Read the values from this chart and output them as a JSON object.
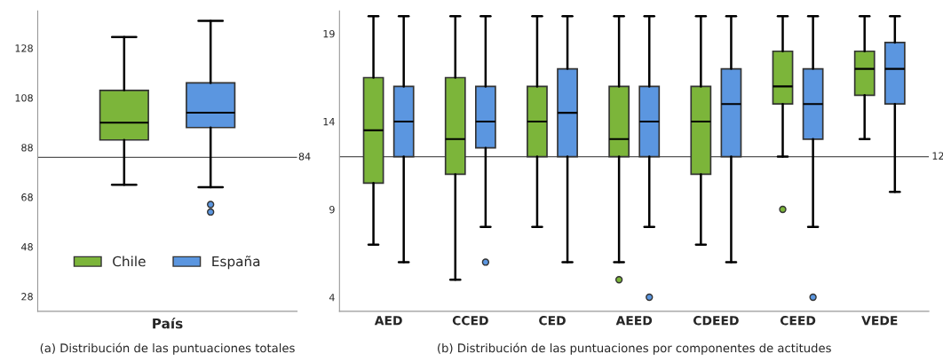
{
  "chart_data": [
    {
      "type": "box",
      "categories": [
        null
      ],
      "xlabel": "País",
      "ylim": [
        22,
        143
      ],
      "yticks": [
        28,
        48,
        68,
        88,
        108,
        128
      ],
      "legend": "bottom",
      "series": [
        {
          "name": "Chile",
          "color": "#7cb53a",
          "boxes": [
            {
              "low": 73,
              "q1": 91,
              "median": 98,
              "q3": 111,
              "high": 132.5
            }
          ]
        },
        {
          "name": "España",
          "color": "#5b96e0",
          "boxes": [
            {
              "low": 72,
              "q1": 96,
              "median": 102,
              "q3": 114,
              "high": 139,
              "outliers": [
                65,
                62
              ]
            }
          ]
        }
      ],
      "ref_lines": [
        {
          "axis": "y",
          "value": 84,
          "label": "84"
        }
      ],
      "annotations": [
        "(a) Distribución de las puntuaciones totales"
      ]
    },
    {
      "type": "box",
      "categories": [
        "AED",
        "CCED",
        "CED",
        "AEED",
        "CDEED",
        "CEED",
        "VEDE"
      ],
      "ylim": [
        3.2,
        20.3
      ],
      "yticks": [
        4,
        9,
        14,
        19
      ],
      "series": [
        {
          "color": "#7cb53a",
          "boxes": [
            {
              "low": 7,
              "q1": 10.5,
              "median": 13.5,
              "q3": 16.5,
              "high": 20
            },
            {
              "low": 5,
              "q1": 11,
              "median": 13,
              "q3": 16.5,
              "high": 20
            },
            {
              "low": 8,
              "q1": 12,
              "median": 14,
              "q3": 16,
              "high": 20
            },
            {
              "low": 6,
              "q1": 12,
              "median": 13,
              "q3": 16,
              "high": 20,
              "outliers": [
                5
              ]
            },
            {
              "low": 7,
              "q1": 11,
              "median": 14,
              "q3": 16,
              "high": 20
            },
            {
              "low": 12,
              "q1": 15,
              "median": 16,
              "q3": 18,
              "high": 20,
              "outliers": [
                9
              ]
            },
            {
              "low": 13,
              "q1": 15.5,
              "median": 17,
              "q3": 18,
              "high": 20
            }
          ]
        },
        {
          "color": "#5b96e0",
          "boxes": [
            {
              "low": 6,
              "q1": 12,
              "median": 14,
              "q3": 16,
              "high": 20
            },
            {
              "low": 8,
              "q1": 12.5,
              "median": 14,
              "q3": 16,
              "high": 20,
              "outliers": [
                6
              ]
            },
            {
              "low": 6,
              "q1": 12,
              "median": 14.5,
              "q3": 17,
              "high": 20
            },
            {
              "low": 8,
              "q1": 12,
              "median": 14,
              "q3": 16,
              "high": 20,
              "outliers": [
                4
              ]
            },
            {
              "low": 6,
              "q1": 12,
              "median": 15,
              "q3": 17,
              "high": 20
            },
            {
              "low": 8,
              "q1": 13,
              "median": 15,
              "q3": 17,
              "high": 20,
              "outliers": [
                4
              ]
            },
            {
              "low": 10,
              "q1": 15,
              "median": 17,
              "q3": 18.5,
              "high": 20
            }
          ]
        }
      ],
      "ref_lines": [
        {
          "axis": "y",
          "value": 12,
          "label": "12"
        }
      ],
      "annotations": [
        "(b) Distribución de las puntuaciones por componentes de actitudes"
      ]
    }
  ]
}
